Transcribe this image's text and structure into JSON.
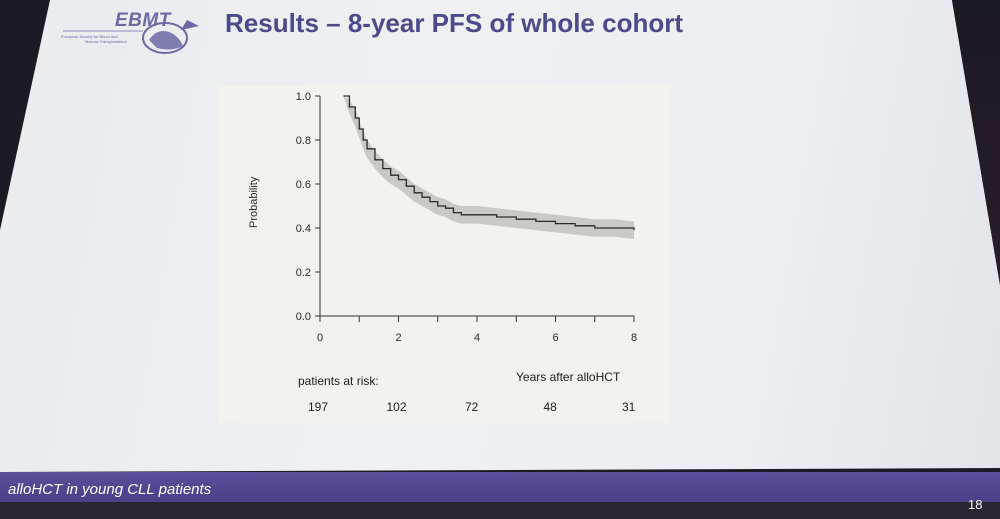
{
  "slide": {
    "title": "Results – 8-year PFS of whole cohort",
    "logo_text": "EBMT",
    "logo_caption_1": "European Society for Blood and",
    "logo_caption_2": "Marrow Transplantation",
    "footer_text": "alloHCT in young CLL patients",
    "page_number": "18"
  },
  "chart_data": {
    "type": "line",
    "title": "",
    "xlabel": "Years after alloHCT",
    "ylabel": "Probability",
    "xlim": [
      0,
      8
    ],
    "ylim": [
      0.0,
      1.0
    ],
    "x_ticks": [
      "0",
      "2",
      "4",
      "6",
      "8"
    ],
    "y_ticks": [
      "0.0",
      "0.2",
      "0.4",
      "0.6",
      "0.8",
      "1.0"
    ],
    "series": [
      {
        "x": [
          0.6,
          0.75,
          0.9,
          1.0,
          1.1,
          1.2,
          1.4,
          1.6,
          1.8,
          2.0,
          2.2,
          2.4,
          2.6,
          2.8,
          3.0,
          3.2,
          3.4,
          3.6,
          4.0,
          4.5,
          5.0,
          5.5,
          6.0,
          6.5,
          7.0,
          7.5,
          8.0
        ],
        "y": [
          1.0,
          0.95,
          0.9,
          0.85,
          0.8,
          0.76,
          0.71,
          0.67,
          0.64,
          0.62,
          0.59,
          0.56,
          0.54,
          0.52,
          0.5,
          0.49,
          0.47,
          0.46,
          0.46,
          0.45,
          0.44,
          0.43,
          0.42,
          0.41,
          0.4,
          0.4,
          0.39
        ],
        "ci_lower": [
          1.0,
          0.92,
          0.86,
          0.81,
          0.76,
          0.72,
          0.67,
          0.63,
          0.6,
          0.58,
          0.55,
          0.52,
          0.5,
          0.48,
          0.46,
          0.45,
          0.43,
          0.42,
          0.42,
          0.41,
          0.4,
          0.39,
          0.38,
          0.37,
          0.36,
          0.36,
          0.35
        ],
        "ci_upper": [
          1.0,
          0.98,
          0.94,
          0.89,
          0.84,
          0.8,
          0.75,
          0.71,
          0.68,
          0.66,
          0.63,
          0.6,
          0.58,
          0.56,
          0.54,
          0.53,
          0.51,
          0.5,
          0.5,
          0.49,
          0.48,
          0.47,
          0.46,
          0.45,
          0.44,
          0.44,
          0.43
        ]
      }
    ],
    "risk_table": {
      "label": "patients at risk:",
      "values": [
        "197",
        "102",
        "72",
        "48",
        "31"
      ]
    }
  }
}
